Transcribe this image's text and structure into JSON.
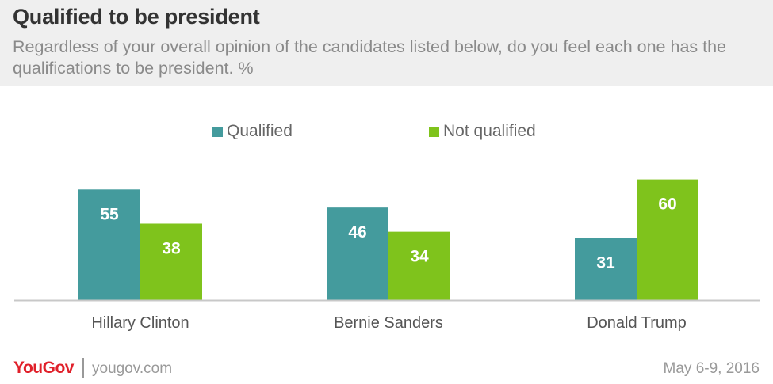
{
  "title": "Qualified to be president",
  "subtitle": "Regardless of your overall opinion of the candidates listed below, do you feel each one has the qualifications to be president. %",
  "chart_data": {
    "type": "bar",
    "categories": [
      "Hillary Clinton",
      "Bernie Sanders",
      "Donald Trump"
    ],
    "series": [
      {
        "name": "Qualified",
        "values": [
          55,
          46,
          31
        ],
        "color": "#449b9d"
      },
      {
        "name": "Not qualified",
        "values": [
          38,
          34,
          60
        ],
        "color": "#7fc31c"
      }
    ],
    "ylim": [
      0,
      65
    ],
    "grid": false,
    "legend_position": "top-center",
    "axis_color": "#c8c8c8"
  },
  "footer": {
    "brand": "YouGov",
    "url": "yougov.com",
    "date": "May 6-9, 2016",
    "brand_color": "#e0202a"
  }
}
